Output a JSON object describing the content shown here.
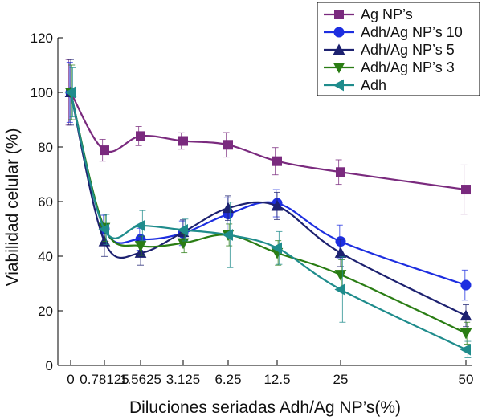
{
  "chart_data": {
    "type": "line",
    "title": "",
    "xlabel": "Diluciones seriadas Adh/Ag NP’s(%)",
    "ylabel": "Viabilidad celular (%)",
    "categories": [
      "0",
      "0.78125",
      "1.5625",
      "3.125",
      "6.25",
      "12.5",
      "25",
      "50"
    ],
    "ylim": [
      0,
      120
    ],
    "yticks": [
      "0",
      "20",
      "40",
      "60",
      "80",
      "100",
      "120"
    ],
    "grid": false,
    "legend_position": "top-right",
    "series": [
      {
        "name": "Ag NP’s",
        "color": "#7a2a7e",
        "marker": "square",
        "values": [
          100,
          78.8,
          84,
          82.2,
          80.8,
          74.8,
          70.8,
          64.4
        ],
        "errors": [
          12,
          4,
          3.5,
          3,
          4.5,
          5,
          4.5,
          9
        ]
      },
      {
        "name": "Adh/Ag NP’s 10",
        "color": "#1d2ee0",
        "marker": "circle",
        "values": [
          100,
          50,
          46.2,
          48.4,
          55.4,
          59.4,
          45.4,
          29.4
        ],
        "errors": [
          11,
          5,
          4,
          4.5,
          6,
          5,
          6,
          5.5
        ]
      },
      {
        "name": "Adh/Ag NP’s 5",
        "color": "#1d2170",
        "marker": "triangle-up",
        "values": [
          100,
          45.4,
          41.2,
          48.8,
          57.6,
          58.4,
          41.2,
          18.2
        ],
        "errors": [
          12,
          5.5,
          4.5,
          4.5,
          4.5,
          5,
          5,
          4
        ]
      },
      {
        "name": "Adh/Ag NP’s 3",
        "color": "#2a7d14",
        "marker": "triangle-down",
        "values": [
          100,
          50.4,
          43.8,
          44.8,
          47.8,
          41.2,
          33.2,
          11.8
        ],
        "errors": [
          10,
          5,
          3.5,
          3.5,
          4,
          4.5,
          5.5,
          4
        ]
      },
      {
        "name": "Adh",
        "color": "#1f8c8c",
        "marker": "triangle-left",
        "values": [
          100,
          49.8,
          51.2,
          49.6,
          47.8,
          43.0,
          27.8,
          5.8
        ],
        "errors": [
          9,
          5.5,
          5.5,
          4,
          12,
          6,
          12,
          3
        ]
      }
    ]
  }
}
